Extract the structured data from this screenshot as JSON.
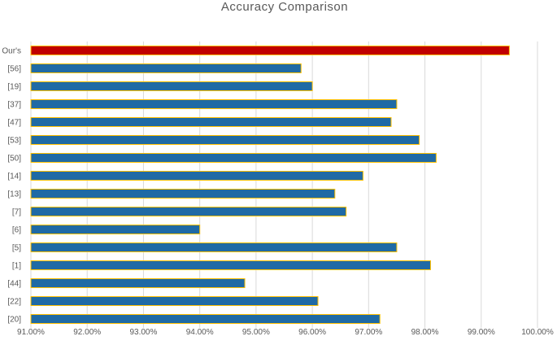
{
  "chart_data": {
    "type": "bar",
    "orientation": "horizontal",
    "title": "Accuracy  Comparison",
    "categories": [
      "Our's",
      "[56]",
      "[19]",
      "[37]",
      "[47]",
      "[53]",
      "[50]",
      "[14]",
      "[13]",
      "[7]",
      "[6]",
      "[5]",
      "[1]",
      "[44]",
      "[22]",
      "[20]"
    ],
    "values": [
      99.5,
      95.8,
      96.0,
      97.5,
      97.4,
      97.9,
      98.2,
      96.9,
      96.4,
      96.6,
      94.0,
      97.5,
      98.1,
      94.8,
      96.1,
      97.2
    ],
    "unit": "%",
    "xlim": [
      91,
      100
    ],
    "xticks": [
      "91.00%",
      "92.00%",
      "93.00%",
      "94.00%",
      "95.00%",
      "96.00%",
      "97.00%",
      "98.00%",
      "99.00%",
      "100.00%"
    ],
    "grid": true,
    "legend": "none",
    "colors": {
      "highlight_fill": "#c00000",
      "bar_fill": "#1f6aa5",
      "bar_outline": "#ffc000",
      "gridline": "#d9d9d9",
      "text": "#595959"
    }
  }
}
